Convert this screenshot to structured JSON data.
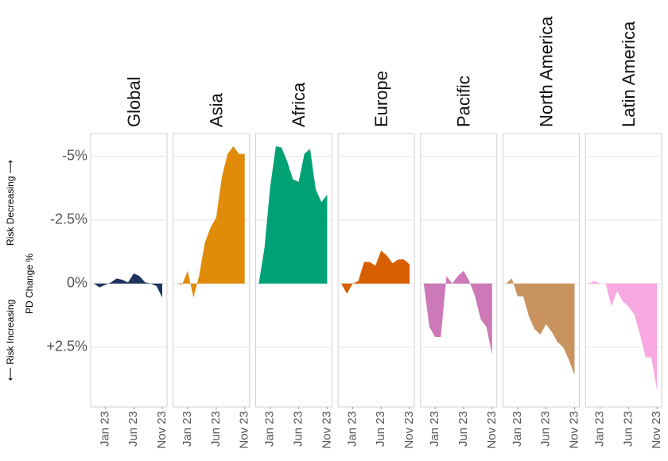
{
  "chart_data": {
    "type": "area",
    "facets": true,
    "y_label": "PD Change %",
    "y_label_top": "Risk Decreasing ⟶",
    "y_label_bottom": "⟵ Risk Increasing",
    "categories": [
      null,
      null,
      "Jan 23",
      null,
      null,
      null,
      null,
      "Jun 23",
      null,
      null,
      null,
      null,
      "Nov 23"
    ],
    "ylim": [
      4.85,
      -5.9
    ],
    "yticks": [
      {
        "value": -5,
        "label": "-5%"
      },
      {
        "value": -2.5,
        "label": "-2.5%"
      },
      {
        "value": 0,
        "label": "0%"
      },
      {
        "value": 2.5,
        "label": "+2.5%"
      }
    ],
    "grid": true,
    "series": [
      {
        "name": "Global",
        "color": "#1f3560",
        "values": [
          0,
          0.15,
          0.05,
          -0.05,
          -0.2,
          -0.15,
          -0.05,
          -0.4,
          -0.3,
          -0.05,
          0,
          0.1,
          0.55
        ]
      },
      {
        "name": "Asia",
        "color": "#e08c0a",
        "values": [
          0,
          0.05,
          -0.5,
          0.55,
          -0.3,
          -1.6,
          -2.2,
          -2.6,
          -4.2,
          -5.1,
          -5.4,
          -5.1,
          -5.1
        ]
      },
      {
        "name": "Africa",
        "color": "#00a275",
        "values": [
          0,
          -1.4,
          -3.8,
          -5.4,
          -5.35,
          -4.8,
          -4.1,
          -4.0,
          -5.1,
          -5.3,
          -3.7,
          -3.2,
          -3.5
        ]
      },
      {
        "name": "Europe",
        "color": "#d75f00",
        "values": [
          0,
          0.4,
          0,
          -0.1,
          -0.85,
          -0.85,
          -0.7,
          -1.3,
          -1.1,
          -0.8,
          -0.95,
          -0.95,
          -0.75
        ]
      },
      {
        "name": "Pacific",
        "color": "#cc79b7",
        "values": [
          0,
          1.7,
          2.1,
          2.1,
          -0.3,
          0,
          -0.3,
          -0.5,
          -0.1,
          0.5,
          1.4,
          1.7,
          2.8
        ]
      },
      {
        "name": "North America",
        "color": "#c99360",
        "values": [
          0,
          -0.2,
          0.5,
          0.5,
          1.3,
          1.8,
          2.0,
          1.6,
          1.9,
          2.3,
          2.5,
          3.0,
          3.6
        ]
      },
      {
        "name": "Latin America",
        "color": "#f9a8e2",
        "values": [
          0,
          -0.1,
          0,
          0,
          0.9,
          0.3,
          0.7,
          0.9,
          1.2,
          2.0,
          2.9,
          2.9,
          4.2
        ]
      }
    ]
  }
}
